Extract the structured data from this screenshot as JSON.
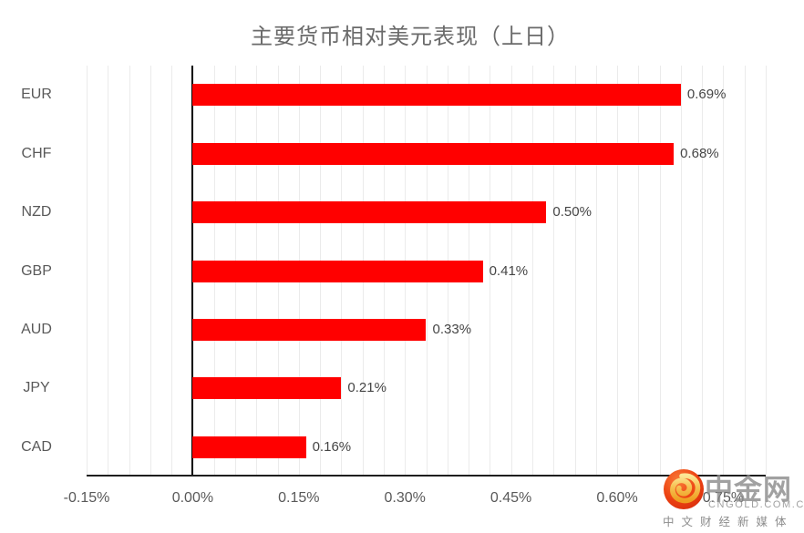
{
  "chart_data": {
    "type": "bar",
    "orientation": "horizontal",
    "title": "主要货币相对美元表现（上日）",
    "categories": [
      "EUR",
      "CHF",
      "NZD",
      "GBP",
      "AUD",
      "JPY",
      "CAD"
    ],
    "values": [
      0.69,
      0.68,
      0.5,
      0.41,
      0.33,
      0.21,
      0.16
    ],
    "value_labels": [
      "0.69%",
      "0.68%",
      "0.50%",
      "0.41%",
      "0.33%",
      "0.21%",
      "0.16%"
    ],
    "x_ticks": [
      {
        "value": -0.15,
        "label": "-0.15%"
      },
      {
        "value": 0.0,
        "label": "0.00%"
      },
      {
        "value": 0.15,
        "label": "0.15%"
      },
      {
        "value": 0.3,
        "label": "0.30%"
      },
      {
        "value": 0.45,
        "label": "0.45%"
      },
      {
        "value": 0.6,
        "label": "0.60%"
      },
      {
        "value": 0.75,
        "label": "0.75%"
      }
    ],
    "xlim": [
      -0.15,
      0.81
    ],
    "minor_unit": 0.03,
    "grid": true,
    "legend": "none",
    "bar_color": "#ff0000",
    "gridline_color": "#ebebeb",
    "axis_color": "#000000"
  },
  "watermark": {
    "brand": "中金网",
    "domain": "CNGOLD.COM.CN",
    "tagline": "中文财经新媒体",
    "logo_red": "#e63c17",
    "logo_gold": "#f6c152"
  }
}
